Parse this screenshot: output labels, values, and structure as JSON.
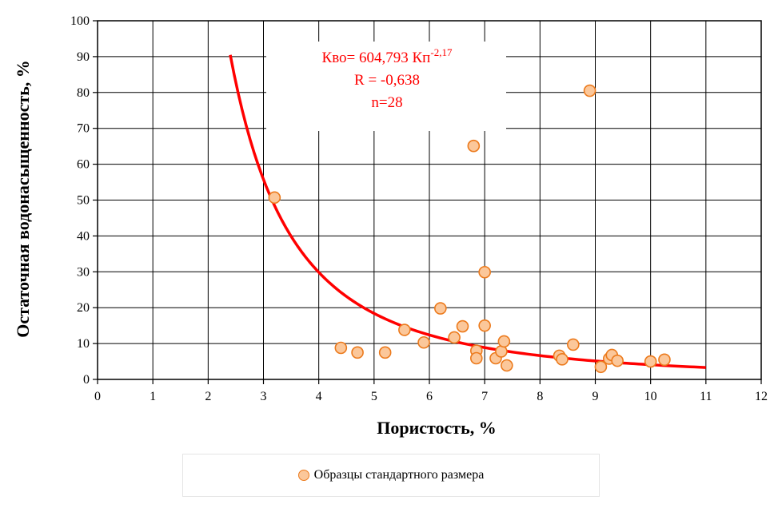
{
  "chart_data": {
    "type": "scatter",
    "xlabel": "Пористость,  %",
    "ylabel": "Остаточная  водонасыщенность,  %",
    "xlim": [
      0,
      12
    ],
    "ylim": [
      0,
      100
    ],
    "x_ticks": [
      "0",
      "1",
      "2",
      "3",
      "4",
      "5",
      "6",
      "7",
      "8",
      "9",
      "10",
      "11",
      "12"
    ],
    "y_ticks": [
      "0",
      "10",
      "20",
      "30",
      "40",
      "50",
      "60",
      "70",
      "80",
      "90",
      "100"
    ],
    "grid": true,
    "legend_position": "bottom",
    "series": [
      {
        "name": "Образцы стандартного размера",
        "marker_fill": "#fbc79a",
        "marker_stroke": "#ec7a1c",
        "points": [
          [
            3.2,
            50.7
          ],
          [
            4.4,
            8.8
          ],
          [
            4.7,
            7.5
          ],
          [
            5.2,
            7.5
          ],
          [
            5.55,
            13.8
          ],
          [
            5.9,
            10.3
          ],
          [
            6.2,
            19.8
          ],
          [
            6.45,
            11.7
          ],
          [
            6.6,
            14.8
          ],
          [
            6.8,
            65.1
          ],
          [
            6.85,
            8.0
          ],
          [
            6.85,
            5.9
          ],
          [
            7.0,
            29.9
          ],
          [
            7.0,
            15.0
          ],
          [
            7.2,
            5.9
          ],
          [
            7.3,
            7.8
          ],
          [
            7.35,
            10.6
          ],
          [
            7.4,
            3.9
          ],
          [
            8.35,
            6.6
          ],
          [
            8.4,
            5.6
          ],
          [
            8.6,
            9.7
          ],
          [
            8.9,
            80.5
          ],
          [
            9.1,
            3.5
          ],
          [
            9.25,
            5.8
          ],
          [
            9.3,
            6.8
          ],
          [
            9.4,
            5.2
          ],
          [
            10.0,
            5.0
          ],
          [
            10.25,
            5.5
          ]
        ]
      }
    ],
    "trendline": {
      "type": "power",
      "coefficient": 604.793,
      "exponent": -2.17,
      "x_range": [
        2.4,
        11.0
      ],
      "color": "#ff0000"
    },
    "annotation": {
      "line1_main": "Кво= 604,793 Кп",
      "line1_sup": "-2,17",
      "line2": "R = -0,638",
      "line3": "n=28"
    }
  },
  "legend": {
    "label": "Образцы стандартного размера"
  }
}
